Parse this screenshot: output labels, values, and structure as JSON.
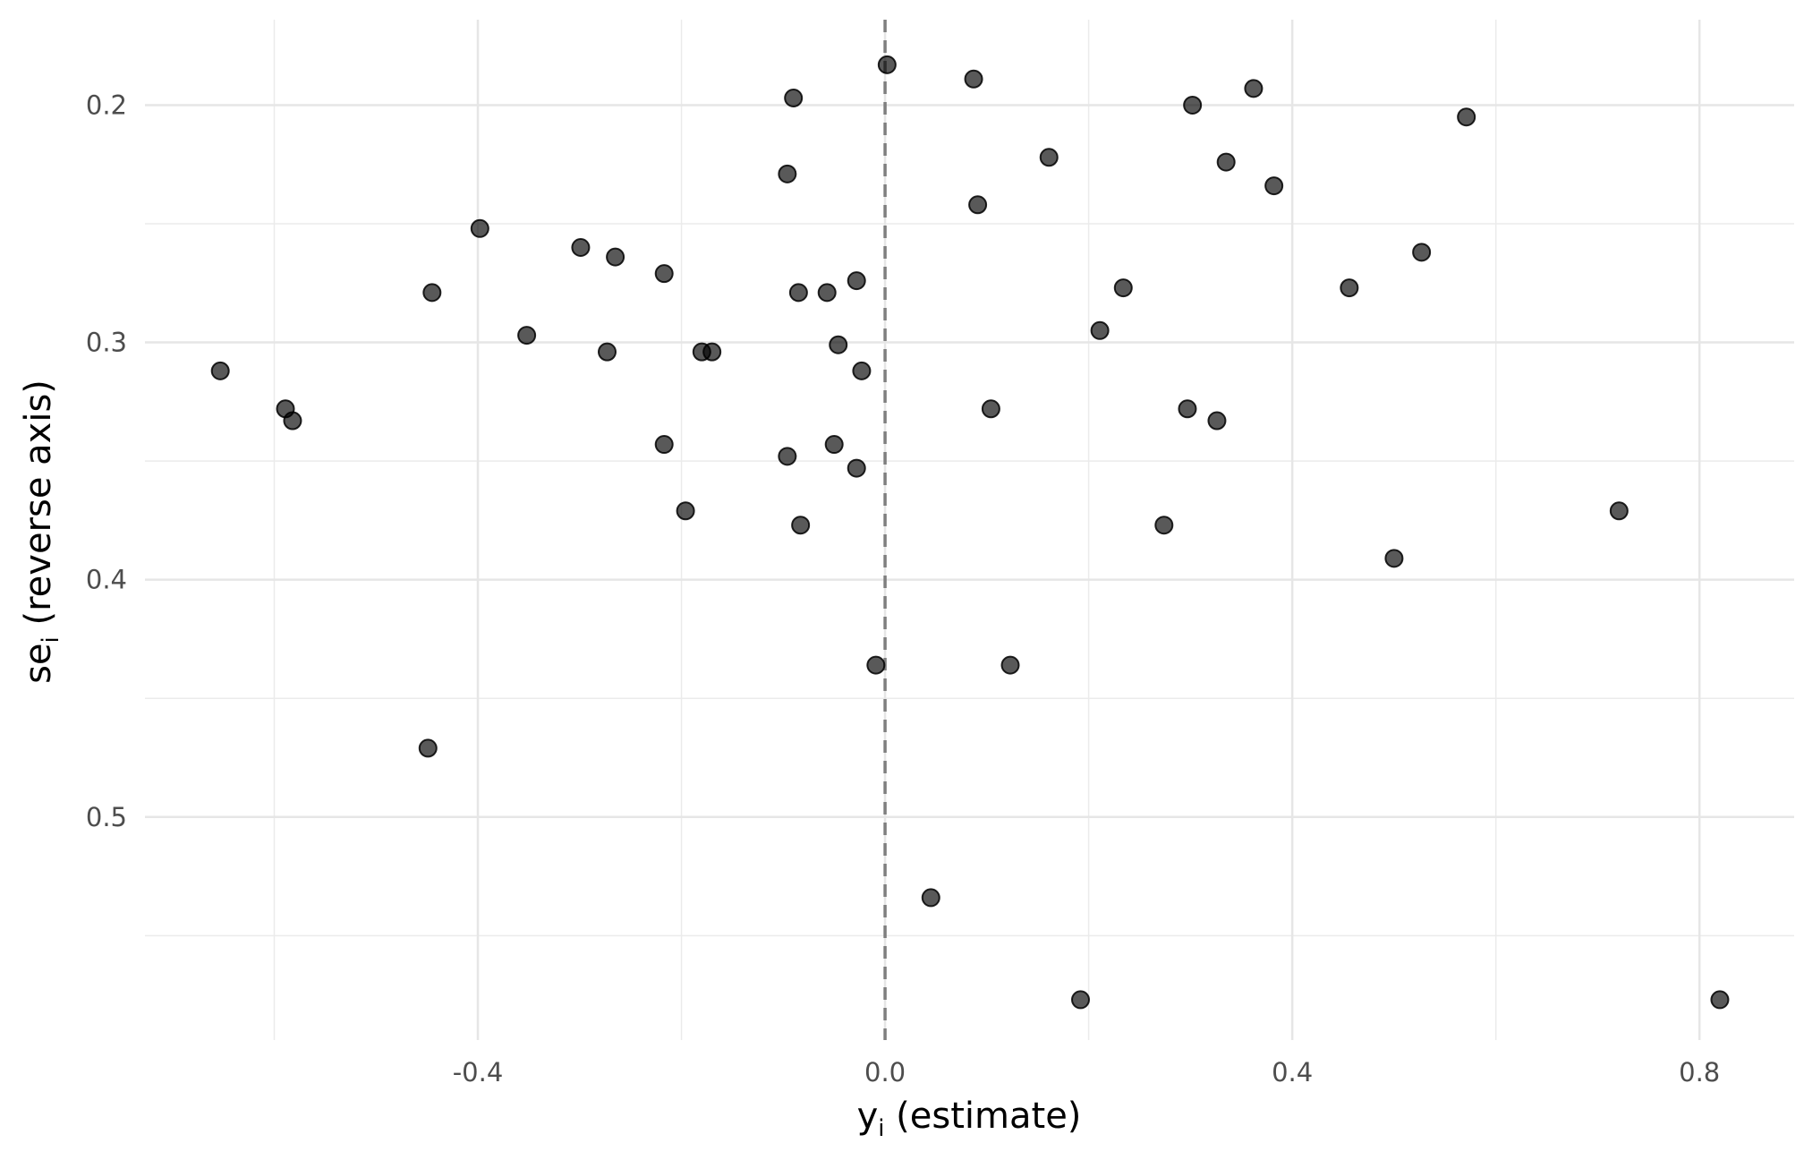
{
  "chart_data": {
    "type": "scatter",
    "xlabel": {
      "main": "y",
      "sub": "i",
      "rest": " (estimate)"
    },
    "ylabel": {
      "main": "se",
      "sub": "i",
      "rest": " (reverse axis)"
    },
    "x_ticks": [
      -0.4,
      0.0,
      0.4,
      0.8
    ],
    "x_tick_labels": [
      "-0.4",
      "0.0",
      "0.4",
      "0.8"
    ],
    "y_ticks": [
      0.2,
      0.3,
      0.4,
      0.5
    ],
    "y_tick_labels": [
      "0.2",
      "0.3",
      "0.4",
      "0.5"
    ],
    "xlim": [
      -0.727,
      0.893
    ],
    "ylim": [
      0.164,
      0.594
    ],
    "y_reversed": true,
    "grid": true,
    "reference_line": {
      "x": 0.0,
      "style": "dashed",
      "color": "#7f7f7f"
    },
    "point_color": "#000000",
    "point_opacity": 0.65,
    "points": [
      {
        "x": 0.002,
        "y": 0.183
      },
      {
        "x": 0.087,
        "y": 0.189
      },
      {
        "x": -0.09,
        "y": 0.197
      },
      {
        "x": 0.362,
        "y": 0.193
      },
      {
        "x": 0.302,
        "y": 0.2
      },
      {
        "x": 0.571,
        "y": 0.205
      },
      {
        "x": 0.161,
        "y": 0.222
      },
      {
        "x": 0.335,
        "y": 0.224
      },
      {
        "x": -0.096,
        "y": 0.229
      },
      {
        "x": 0.382,
        "y": 0.234
      },
      {
        "x": 0.091,
        "y": 0.242
      },
      {
        "x": -0.398,
        "y": 0.252
      },
      {
        "x": -0.299,
        "y": 0.26
      },
      {
        "x": -0.265,
        "y": 0.264
      },
      {
        "x": 0.527,
        "y": 0.262
      },
      {
        "x": -0.217,
        "y": 0.271
      },
      {
        "x": -0.028,
        "y": 0.274
      },
      {
        "x": 0.234,
        "y": 0.277
      },
      {
        "x": 0.456,
        "y": 0.277
      },
      {
        "x": -0.445,
        "y": 0.279
      },
      {
        "x": -0.085,
        "y": 0.279
      },
      {
        "x": -0.057,
        "y": 0.279
      },
      {
        "x": 0.211,
        "y": 0.295
      },
      {
        "x": -0.352,
        "y": 0.297
      },
      {
        "x": -0.046,
        "y": 0.301
      },
      {
        "x": -0.273,
        "y": 0.304
      },
      {
        "x": -0.18,
        "y": 0.304
      },
      {
        "x": -0.17,
        "y": 0.304
      },
      {
        "x": -0.653,
        "y": 0.312
      },
      {
        "x": -0.023,
        "y": 0.312
      },
      {
        "x": -0.589,
        "y": 0.328
      },
      {
        "x": 0.104,
        "y": 0.328
      },
      {
        "x": 0.297,
        "y": 0.328
      },
      {
        "x": -0.582,
        "y": 0.333
      },
      {
        "x": 0.326,
        "y": 0.333
      },
      {
        "x": -0.217,
        "y": 0.343
      },
      {
        "x": -0.05,
        "y": 0.343
      },
      {
        "x": -0.096,
        "y": 0.348
      },
      {
        "x": -0.028,
        "y": 0.353
      },
      {
        "x": -0.196,
        "y": 0.371
      },
      {
        "x": 0.721,
        "y": 0.371
      },
      {
        "x": -0.083,
        "y": 0.377
      },
      {
        "x": 0.274,
        "y": 0.377
      },
      {
        "x": 0.5,
        "y": 0.391
      },
      {
        "x": -0.009,
        "y": 0.436
      },
      {
        "x": 0.123,
        "y": 0.436
      },
      {
        "x": -0.449,
        "y": 0.471
      },
      {
        "x": 0.045,
        "y": 0.534
      },
      {
        "x": 0.192,
        "y": 0.577
      },
      {
        "x": 0.82,
        "y": 0.577
      }
    ]
  }
}
